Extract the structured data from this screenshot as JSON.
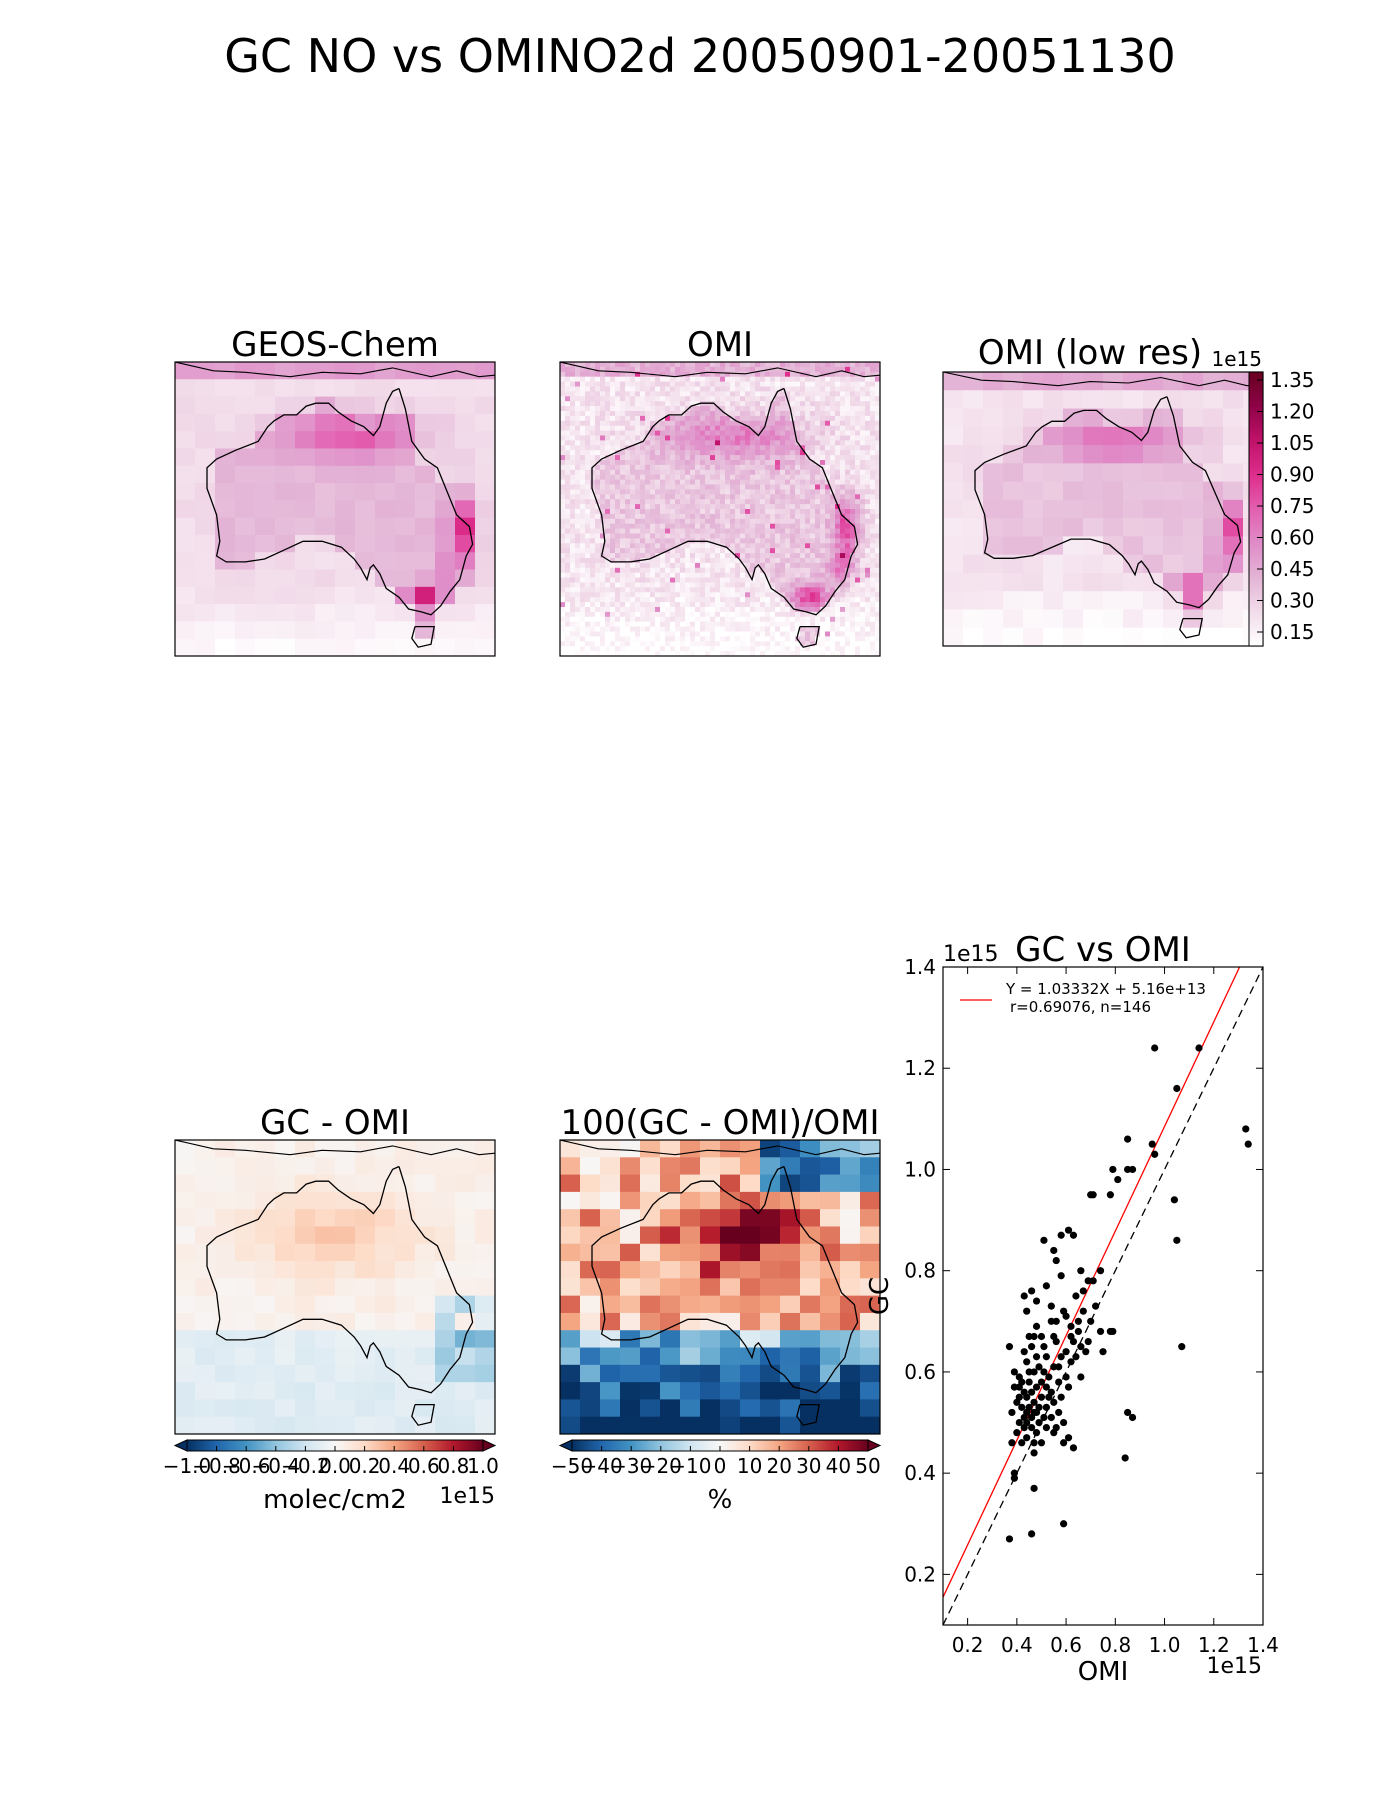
{
  "figure": {
    "title": "GC NO vs OMINO2d 20050901-20051130"
  },
  "panels": {
    "geos_chem": {
      "title": "GEOS-Chem"
    },
    "omi": {
      "title": "OMI"
    },
    "omi_low_res": {
      "title": "OMI (low res)"
    },
    "gc_minus_omi": {
      "title": "GC - OMI"
    },
    "percent_diff": {
      "title": "100(GC - OMI)/OMI"
    },
    "scatter": {
      "title": "GC vs OMI"
    }
  },
  "colorbars": {
    "omi_low_res": {
      "exponent": "1e15",
      "ticks": [
        "1.35",
        "1.20",
        "1.05",
        "0.90",
        "0.75",
        "0.60",
        "0.45",
        "0.30",
        "0.15"
      ],
      "colormap": [
        "#ffffff",
        "#f2dcea",
        "#e3b4d6",
        "#e08cc8",
        "#e35fb0",
        "#de2d8c",
        "#c0126a",
        "#8e0347",
        "#67001f"
      ]
    },
    "gc_minus_omi": {
      "ticks": [
        "−1.0",
        "−0.8",
        "−0.6",
        "−0.4",
        "−0.2",
        "0.0",
        "0.2",
        "0.4",
        "0.6",
        "0.8",
        "1.0"
      ],
      "label": "molec/cm2",
      "exponent": "1e15",
      "colormap": [
        "#053061",
        "#2166ac",
        "#4393c3",
        "#92c5de",
        "#d1e5f0",
        "#f7f7f7",
        "#fddbc7",
        "#f4a582",
        "#d6604d",
        "#b2182b",
        "#67001f"
      ]
    },
    "percent_diff": {
      "ticks": [
        "−50",
        "−40",
        "−30",
        "−20",
        "−10",
        "0",
        "10",
        "20",
        "30",
        "40",
        "50"
      ],
      "label": "%",
      "colormap": [
        "#053061",
        "#2166ac",
        "#4393c3",
        "#92c5de",
        "#d1e5f0",
        "#f7f7f7",
        "#fddbc7",
        "#f4a582",
        "#d6604d",
        "#b2182b",
        "#67001f"
      ]
    }
  },
  "chart_data": {
    "type": "scatter",
    "title": "GC vs OMI",
    "xlabel": "OMI",
    "ylabel": "GC",
    "x_exponent": "1e15",
    "y_exponent": "1e15",
    "xlim": [
      0.1,
      1.4
    ],
    "ylim": [
      0.1,
      1.4
    ],
    "xticks": [
      "0.2",
      "0.4",
      "0.6",
      "0.8",
      "1.0",
      "1.2",
      "1.4"
    ],
    "yticks": [
      "0.2",
      "0.4",
      "0.6",
      "0.8",
      "1.0",
      "1.2",
      "1.4"
    ],
    "legend_line1": "Y = 1.03332X + 5.16e+13",
    "legend_line2": "r=0.69076, n=146",
    "legend_position": "top-left",
    "fit": {
      "slope": 1.03332,
      "intercept": 0.0516,
      "color": "#ff0000"
    },
    "one_to_one_line": {
      "style": "dashed",
      "color": "#000000"
    },
    "points": [
      [
        0.96,
        1.24
      ],
      [
        1.14,
        1.24
      ],
      [
        1.05,
        1.16
      ],
      [
        1.33,
        1.08
      ],
      [
        1.34,
        1.05
      ],
      [
        0.85,
        1.06
      ],
      [
        0.95,
        1.05
      ],
      [
        0.96,
        1.03
      ],
      [
        0.87,
        1.0
      ],
      [
        0.85,
        1.0
      ],
      [
        0.79,
        1.0
      ],
      [
        0.81,
        0.98
      ],
      [
        0.7,
        0.95
      ],
      [
        0.71,
        0.95
      ],
      [
        0.78,
        0.95
      ],
      [
        1.04,
        0.94
      ],
      [
        0.61,
        0.88
      ],
      [
        0.63,
        0.87
      ],
      [
        0.58,
        0.87
      ],
      [
        0.51,
        0.86
      ],
      [
        1.05,
        0.86
      ],
      [
        0.55,
        0.84
      ],
      [
        0.56,
        0.82
      ],
      [
        0.66,
        0.8
      ],
      [
        0.58,
        0.79
      ],
      [
        0.69,
        0.78
      ],
      [
        0.71,
        0.78
      ],
      [
        0.52,
        0.77
      ],
      [
        0.46,
        0.76
      ],
      [
        0.43,
        0.75
      ],
      [
        0.64,
        0.75
      ],
      [
        0.48,
        0.74
      ],
      [
        0.54,
        0.73
      ],
      [
        0.44,
        0.72
      ],
      [
        0.59,
        0.72
      ],
      [
        0.67,
        0.72
      ],
      [
        0.6,
        0.71
      ],
      [
        0.7,
        0.7
      ],
      [
        0.65,
        0.7
      ],
      [
        0.54,
        0.7
      ],
      [
        0.48,
        0.69
      ],
      [
        0.62,
        0.69
      ],
      [
        0.74,
        0.68
      ],
      [
        0.78,
        0.68
      ],
      [
        0.45,
        0.67
      ],
      [
        0.47,
        0.67
      ],
      [
        0.5,
        0.67
      ],
      [
        0.56,
        0.66
      ],
      [
        0.63,
        0.66
      ],
      [
        0.69,
        0.66
      ],
      [
        0.37,
        0.65
      ],
      [
        0.46,
        0.65
      ],
      [
        0.51,
        0.65
      ],
      [
        0.66,
        0.65
      ],
      [
        0.75,
        0.64
      ],
      [
        0.43,
        0.64
      ],
      [
        0.52,
        0.63
      ],
      [
        0.58,
        0.63
      ],
      [
        0.64,
        0.63
      ],
      [
        0.62,
        0.62
      ],
      [
        0.44,
        0.62
      ],
      [
        0.49,
        0.61
      ],
      [
        0.55,
        0.61
      ],
      [
        0.39,
        0.6
      ],
      [
        0.47,
        0.6
      ],
      [
        0.53,
        0.59
      ],
      [
        0.6,
        0.59
      ],
      [
        0.66,
        0.59
      ],
      [
        0.41,
        0.59
      ],
      [
        0.45,
        0.58
      ],
      [
        0.5,
        0.58
      ],
      [
        0.57,
        0.58
      ],
      [
        0.39,
        0.57
      ],
      [
        0.48,
        0.57
      ],
      [
        0.52,
        0.57
      ],
      [
        0.61,
        0.57
      ],
      [
        0.43,
        0.56
      ],
      [
        0.46,
        0.56
      ],
      [
        0.54,
        0.56
      ],
      [
        0.58,
        0.55
      ],
      [
        0.41,
        0.55
      ],
      [
        0.44,
        0.55
      ],
      [
        0.5,
        0.55
      ],
      [
        0.47,
        0.54
      ],
      [
        0.55,
        0.54
      ],
      [
        0.42,
        0.53
      ],
      [
        0.45,
        0.53
      ],
      [
        0.49,
        0.53
      ],
      [
        0.52,
        0.53
      ],
      [
        0.57,
        0.52
      ],
      [
        0.44,
        0.52
      ],
      [
        0.38,
        0.52
      ],
      [
        0.47,
        0.52
      ],
      [
        0.51,
        0.51
      ],
      [
        0.43,
        0.51
      ],
      [
        0.46,
        0.51
      ],
      [
        0.54,
        0.51
      ],
      [
        0.41,
        0.5
      ],
      [
        0.49,
        0.5
      ],
      [
        0.59,
        0.5
      ],
      [
        0.87,
        0.51
      ],
      [
        0.43,
        0.49
      ],
      [
        0.46,
        0.49
      ],
      [
        0.52,
        0.49
      ],
      [
        0.85,
        0.52
      ],
      [
        0.4,
        0.48
      ],
      [
        0.48,
        0.48
      ],
      [
        0.55,
        0.48
      ],
      [
        0.44,
        0.47
      ],
      [
        0.61,
        0.47
      ],
      [
        0.38,
        0.46
      ],
      [
        0.47,
        0.46
      ],
      [
        0.59,
        0.46
      ],
      [
        0.63,
        0.45
      ],
      [
        0.42,
        0.46
      ],
      [
        0.5,
        0.46
      ],
      [
        0.84,
        0.43
      ],
      [
        0.47,
        0.44
      ],
      [
        0.39,
        0.4
      ],
      [
        0.39,
        0.39
      ],
      [
        0.47,
        0.37
      ],
      [
        0.59,
        0.3
      ],
      [
        0.46,
        0.28
      ],
      [
        0.37,
        0.27
      ],
      [
        0.56,
        0.49
      ],
      [
        0.53,
        0.55
      ],
      [
        0.45,
        0.6
      ],
      [
        0.48,
        0.63
      ],
      [
        0.4,
        0.54
      ],
      [
        0.42,
        0.58
      ],
      [
        0.57,
        0.61
      ],
      [
        0.62,
        0.67
      ],
      [
        0.68,
        0.64
      ],
      [
        0.72,
        0.73
      ],
      [
        0.51,
        0.6
      ],
      [
        0.55,
        0.67
      ],
      [
        0.65,
        0.68
      ],
      [
        0.6,
        0.64
      ],
      [
        0.44,
        0.5
      ],
      [
        0.48,
        0.52
      ],
      [
        1.07,
        0.65
      ],
      [
        0.79,
        0.68
      ],
      [
        0.74,
        0.8
      ],
      [
        0.67,
        0.76
      ],
      [
        0.56,
        0.7
      ],
      [
        0.41,
        0.57
      ]
    ]
  }
}
